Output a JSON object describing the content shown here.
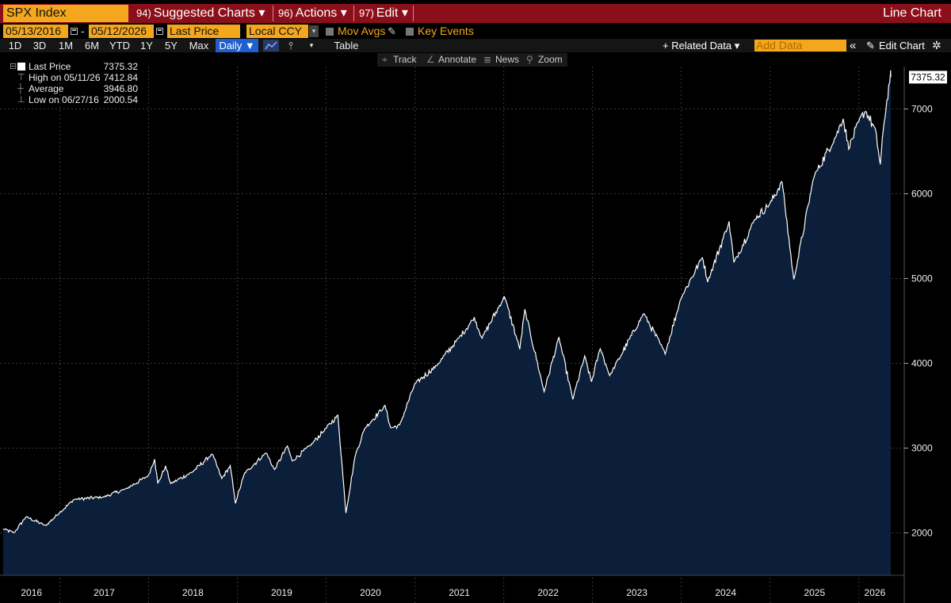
{
  "header": {
    "security": "SPX Index",
    "menus": [
      {
        "num": "94)",
        "label": "Suggested Charts ▾"
      },
      {
        "num": "96)",
        "label": "Actions ▾"
      },
      {
        "num": "97)",
        "label": "Edit ▾"
      }
    ],
    "chart_type": "Line Chart"
  },
  "controls": {
    "start_date": "05/13/2016",
    "end_date": "05/12/2026",
    "dash": "-",
    "price_field": "Last Price",
    "currency": "Local CCY",
    "mov_avgs": "Mov Avgs",
    "key_events": "Key Events"
  },
  "periods": [
    "1D",
    "3D",
    "1M",
    "6M",
    "YTD",
    "1Y",
    "5Y",
    "Max"
  ],
  "frequency": "Daily ▼",
  "table_label": "Table",
  "related_data": "+ Related Data ▾",
  "add_data_placeholder": "Add Data",
  "collapse": "«",
  "edit_chart": "Edit Chart",
  "tools": [
    "Track",
    "Annotate",
    "News",
    "Zoom"
  ],
  "legend": [
    {
      "label": "Last Price",
      "value": "7375.32"
    },
    {
      "label": "High on 05/11/26",
      "value": "7412.84"
    },
    {
      "label": "Average",
      "value": "3946.80"
    },
    {
      "label": "Low on 06/27/16",
      "value": "2000.54"
    }
  ],
  "colors": {
    "area": "#0b1f3a",
    "line": "#ffffff",
    "header": "#8b0f1a",
    "accent": "#f4a71d"
  },
  "chart_data": {
    "type": "area",
    "series": [
      {
        "name": "Last Price",
        "points": [
          [
            "2016-05-13",
            2046
          ],
          [
            "2016-06-27",
            2001
          ],
          [
            "2016-08-15",
            2190
          ],
          [
            "2016-11-04",
            2085
          ],
          [
            "2016-12-31",
            2239
          ],
          [
            "2017-03-01",
            2395
          ],
          [
            "2017-06-30",
            2423
          ],
          [
            "2017-09-30",
            2519
          ],
          [
            "2017-12-31",
            2674
          ],
          [
            "2018-01-26",
            2873
          ],
          [
            "2018-02-08",
            2581
          ],
          [
            "2018-03-12",
            2786
          ],
          [
            "2018-04-02",
            2581
          ],
          [
            "2018-06-30",
            2718
          ],
          [
            "2018-09-20",
            2931
          ],
          [
            "2018-10-29",
            2641
          ],
          [
            "2018-12-03",
            2790
          ],
          [
            "2018-12-24",
            2351
          ],
          [
            "2019-01-31",
            2704
          ],
          [
            "2019-04-30",
            2946
          ],
          [
            "2019-06-03",
            2744
          ],
          [
            "2019-07-26",
            3025
          ],
          [
            "2019-08-15",
            2847
          ],
          [
            "2019-10-31",
            3038
          ],
          [
            "2019-12-31",
            3231
          ],
          [
            "2020-02-19",
            3386
          ],
          [
            "2020-03-23",
            2237
          ],
          [
            "2020-04-30",
            2912
          ],
          [
            "2020-06-08",
            3232
          ],
          [
            "2020-08-31",
            3500
          ],
          [
            "2020-09-23",
            3237
          ],
          [
            "2020-10-30",
            3270
          ],
          [
            "2020-12-31",
            3756
          ],
          [
            "2021-03-31",
            3973
          ],
          [
            "2021-06-30",
            4298
          ],
          [
            "2021-09-02",
            4537
          ],
          [
            "2021-10-04",
            4300
          ],
          [
            "2021-12-31",
            4766
          ],
          [
            "2022-01-03",
            4797
          ],
          [
            "2022-03-08",
            4170
          ],
          [
            "2022-03-29",
            4631
          ],
          [
            "2022-06-16",
            3667
          ],
          [
            "2022-08-16",
            4305
          ],
          [
            "2022-10-12",
            3577
          ],
          [
            "2022-11-30",
            4080
          ],
          [
            "2022-12-28",
            3783
          ],
          [
            "2023-02-02",
            4179
          ],
          [
            "2023-03-13",
            3855
          ],
          [
            "2023-07-31",
            4589
          ],
          [
            "2023-10-27",
            4117
          ],
          [
            "2023-12-31",
            4770
          ],
          [
            "2024-03-28",
            5254
          ],
          [
            "2024-04-19",
            4967
          ],
          [
            "2024-07-16",
            5667
          ],
          [
            "2024-08-05",
            5186
          ],
          [
            "2024-10-31",
            5705
          ],
          [
            "2024-12-31",
            5882
          ],
          [
            "2025-02-19",
            6144
          ],
          [
            "2025-04-08",
            4982
          ],
          [
            "2025-06-30",
            6205
          ],
          [
            "2025-09-30",
            6688
          ],
          [
            "2025-10-28",
            6890
          ],
          [
            "2025-11-20",
            6538
          ],
          [
            "2025-12-31",
            6845
          ],
          [
            "2026-01-28",
            6978
          ],
          [
            "2026-03-10",
            6750
          ],
          [
            "2026-03-30",
            6343
          ],
          [
            "2026-04-15",
            6850
          ],
          [
            "2026-05-11",
            7413
          ],
          [
            "2026-05-12",
            7375
          ]
        ]
      }
    ],
    "last_value_label": "7375.32",
    "y_ticks": [
      2000,
      3000,
      4000,
      5000,
      6000,
      7000
    ],
    "ylim": [
      1500,
      7500
    ],
    "x_tick_labels": [
      "2016",
      "2017",
      "2018",
      "2019",
      "2020",
      "2021",
      "2022",
      "2023",
      "2024",
      "2025",
      "2026"
    ],
    "xlim": [
      "2016-05-13",
      "2026-05-12"
    ],
    "grid": true,
    "legend_position": "top-left"
  }
}
